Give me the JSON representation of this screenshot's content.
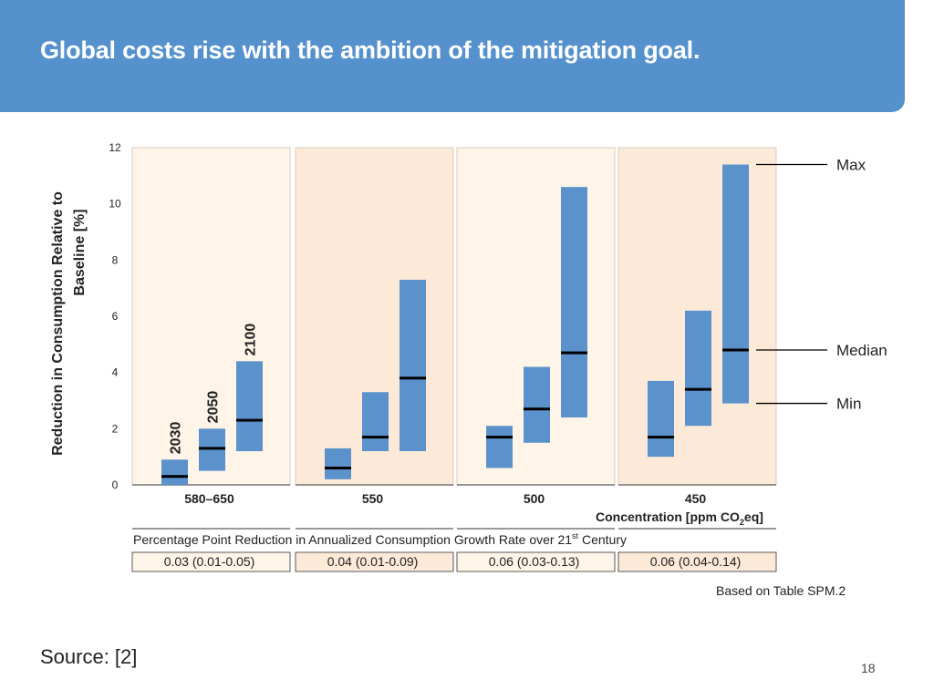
{
  "slide": {
    "title": "Global costs rise with the ambition of the mitigation goal.",
    "note": "Based on Table SPM.2",
    "source": "Source:  [2]",
    "page_number": "18"
  },
  "chart_data": {
    "type": "floating-bar",
    "ylabel_line1": "Reduction in Consumption Relative to",
    "ylabel_line2": "Baseline [%]",
    "ylim": [
      0,
      12
    ],
    "yticks": [
      0,
      2,
      4,
      6,
      8,
      10,
      12
    ],
    "xlabel": "Concentration [ppm CO",
    "xlabel_sub": "2",
    "xlabel_end": "eq]",
    "series_years": [
      "2030",
      "2050",
      "2100"
    ],
    "panels": [
      {
        "label": "580–650",
        "annualized": "0.03 (0.01-0.05)",
        "bars": [
          {
            "year": "2030",
            "min": 0.0,
            "median": 0.3,
            "max": 0.9
          },
          {
            "year": "2050",
            "min": 0.5,
            "median": 1.3,
            "max": 2.0
          },
          {
            "year": "2100",
            "min": 1.2,
            "median": 2.3,
            "max": 4.4
          }
        ]
      },
      {
        "label": "550",
        "annualized": "0.04 (0.01-0.09)",
        "bars": [
          {
            "year": "2030",
            "min": 0.2,
            "median": 0.6,
            "max": 1.3
          },
          {
            "year": "2050",
            "min": 1.2,
            "median": 1.7,
            "max": 3.3
          },
          {
            "year": "2100",
            "min": 1.2,
            "median": 3.8,
            "max": 7.3
          }
        ]
      },
      {
        "label": "500",
        "annualized": "0.06 (0.03-0.13)",
        "bars": [
          {
            "year": "2030",
            "min": 0.6,
            "median": 1.7,
            "max": 2.1
          },
          {
            "year": "2050",
            "min": 1.5,
            "median": 2.7,
            "max": 4.2
          },
          {
            "year": "2100",
            "min": 2.4,
            "median": 4.7,
            "max": 10.6
          }
        ]
      },
      {
        "label": "450",
        "annualized": "0.06 (0.04-0.14)",
        "bars": [
          {
            "year": "2030",
            "min": 1.0,
            "median": 1.7,
            "max": 3.7
          },
          {
            "year": "2050",
            "min": 2.1,
            "median": 3.4,
            "max": 6.2
          },
          {
            "year": "2100",
            "min": 2.9,
            "median": 4.8,
            "max": 11.4
          }
        ]
      }
    ],
    "legend": {
      "max": "Max",
      "median": "Median",
      "min": "Min"
    },
    "annualized_caption_a": "Percentage Point Reduction in Annualized Consumption Growth Rate over 21",
    "annualized_caption_sup": "st",
    "annualized_caption_b": " Century",
    "colors": {
      "bar": "#5b92cc",
      "median": "#000000",
      "panel_light": "#fef4e8",
      "panel_dark": "#fde9d7"
    }
  }
}
